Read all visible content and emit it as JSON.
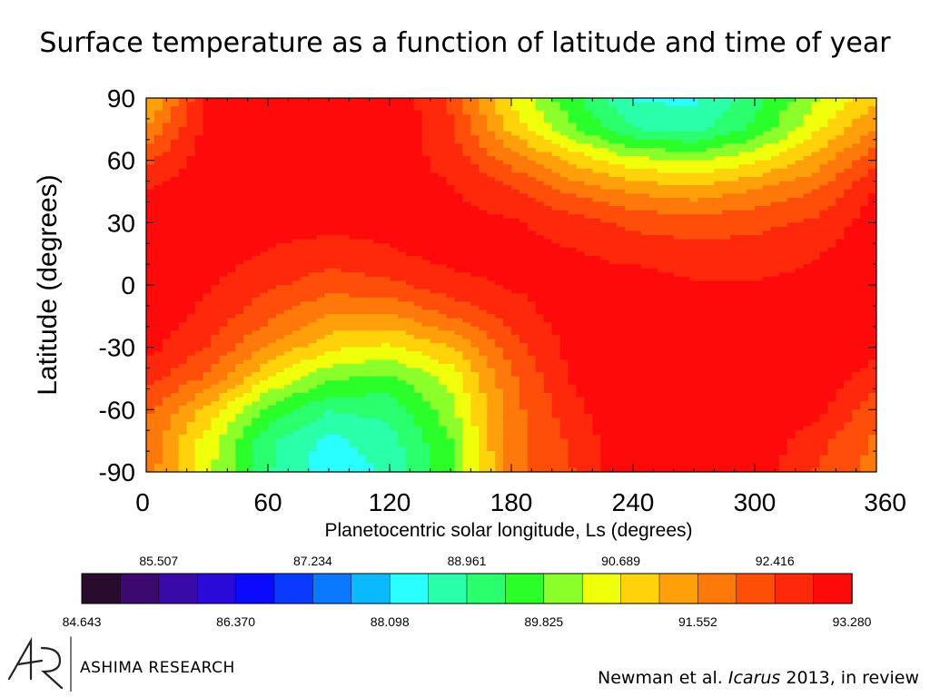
{
  "slide": {
    "title": "Surface temperature as a function of latitude and time of year"
  },
  "chart_data": {
    "type": "heatmap",
    "title": "Surface temperature as a function of latitude and time of year",
    "xlabel": "Planetocentric solar longitude, Ls (degrees)",
    "ylabel": "Latitude (degrees)",
    "xlim": [
      0,
      360
    ],
    "ylim": [
      -90,
      90
    ],
    "x_ticks": [
      0,
      60,
      120,
      180,
      240,
      300,
      360
    ],
    "y_ticks": [
      90,
      60,
      30,
      0,
      -30,
      -60,
      -90
    ],
    "x": [
      0,
      30,
      60,
      90,
      120,
      150,
      180,
      210,
      240,
      270,
      300,
      330,
      360
    ],
    "y": [
      90,
      75,
      60,
      45,
      30,
      15,
      0,
      -15,
      -30,
      -45,
      -60,
      -75,
      -90
    ],
    "z": [
      [
        91.0,
        92.9,
        93.3,
        93.3,
        93.3,
        92.3,
        90.6,
        89.5,
        88.5,
        88.4,
        89.2,
        90.2,
        91.0
      ],
      [
        91.6,
        93.0,
        93.3,
        93.3,
        93.2,
        92.5,
        91.0,
        89.9,
        89.0,
        88.8,
        89.5,
        90.6,
        91.6
      ],
      [
        92.3,
        93.1,
        93.3,
        93.3,
        93.1,
        92.7,
        91.8,
        91.0,
        90.4,
        90.2,
        90.6,
        91.3,
        92.3
      ],
      [
        92.9,
        93.2,
        93.3,
        93.2,
        93.0,
        92.9,
        92.5,
        91.9,
        91.5,
        91.3,
        91.6,
        92.0,
        92.9
      ],
      [
        93.1,
        93.2,
        93.1,
        93.0,
        93.0,
        93.0,
        92.9,
        92.6,
        92.3,
        92.2,
        92.3,
        92.5,
        93.1
      ],
      [
        93.2,
        93.1,
        92.8,
        92.6,
        92.8,
        93.0,
        93.0,
        92.9,
        92.7,
        92.6,
        92.6,
        92.8,
        93.2
      ],
      [
        93.3,
        92.9,
        92.5,
        92.2,
        92.3,
        92.7,
        92.9,
        93.0,
        93.1,
        92.9,
        92.9,
        93.0,
        93.3
      ],
      [
        93.2,
        92.7,
        92.1,
        91.5,
        91.5,
        92.0,
        92.6,
        93.1,
        93.2,
        93.2,
        93.1,
        93.2,
        93.2
      ],
      [
        93.0,
        92.4,
        91.5,
        90.8,
        90.6,
        91.1,
        92.2,
        93.0,
        93.3,
        93.3,
        93.3,
        93.3,
        93.0
      ],
      [
        92.6,
        91.9,
        90.7,
        89.9,
        89.7,
        90.4,
        91.9,
        92.9,
        93.3,
        93.3,
        93.3,
        93.2,
        92.6
      ],
      [
        92.1,
        91.0,
        89.7,
        89.0,
        89.1,
        90.1,
        91.8,
        92.7,
        93.3,
        93.3,
        93.3,
        93.0,
        92.1
      ],
      [
        91.9,
        90.5,
        89.1,
        88.4,
        88.8,
        89.8,
        91.8,
        92.5,
        93.3,
        93.3,
        93.2,
        92.6,
        91.9
      ],
      [
        91.8,
        90.4,
        89.0,
        88.2,
        88.6,
        89.7,
        91.8,
        92.4,
        93.3,
        93.3,
        93.1,
        92.4,
        91.8
      ]
    ],
    "colorbar": {
      "min": 84.643,
      "max": 93.28,
      "top_labels": [
        "85.507",
        "87.234",
        "88.961",
        "90.689",
        "92.416"
      ],
      "bottom_labels": [
        "84.643",
        "86.370",
        "88.098",
        "89.825",
        "91.552",
        "93.280"
      ],
      "colors": [
        "#2a0a2e",
        "#3c0a6e",
        "#3a0aa8",
        "#2a0ad8",
        "#0a0aff",
        "#0a3aff",
        "#0a78ff",
        "#0abaff",
        "#2affff",
        "#2affaa",
        "#2aff6e",
        "#2aff2a",
        "#8aff2a",
        "#f0ff0a",
        "#ffd20a",
        "#ffa00a",
        "#ff780a",
        "#ff4e0a",
        "#ff280a",
        "#ff0a0a"
      ]
    }
  },
  "branding": {
    "logo_mark": "AR",
    "org_name": "ASHIMA RESEARCH"
  },
  "citation": {
    "prefix": "Newman et al. ",
    "journal": "Icarus",
    "suffix": " 2013, in review"
  }
}
